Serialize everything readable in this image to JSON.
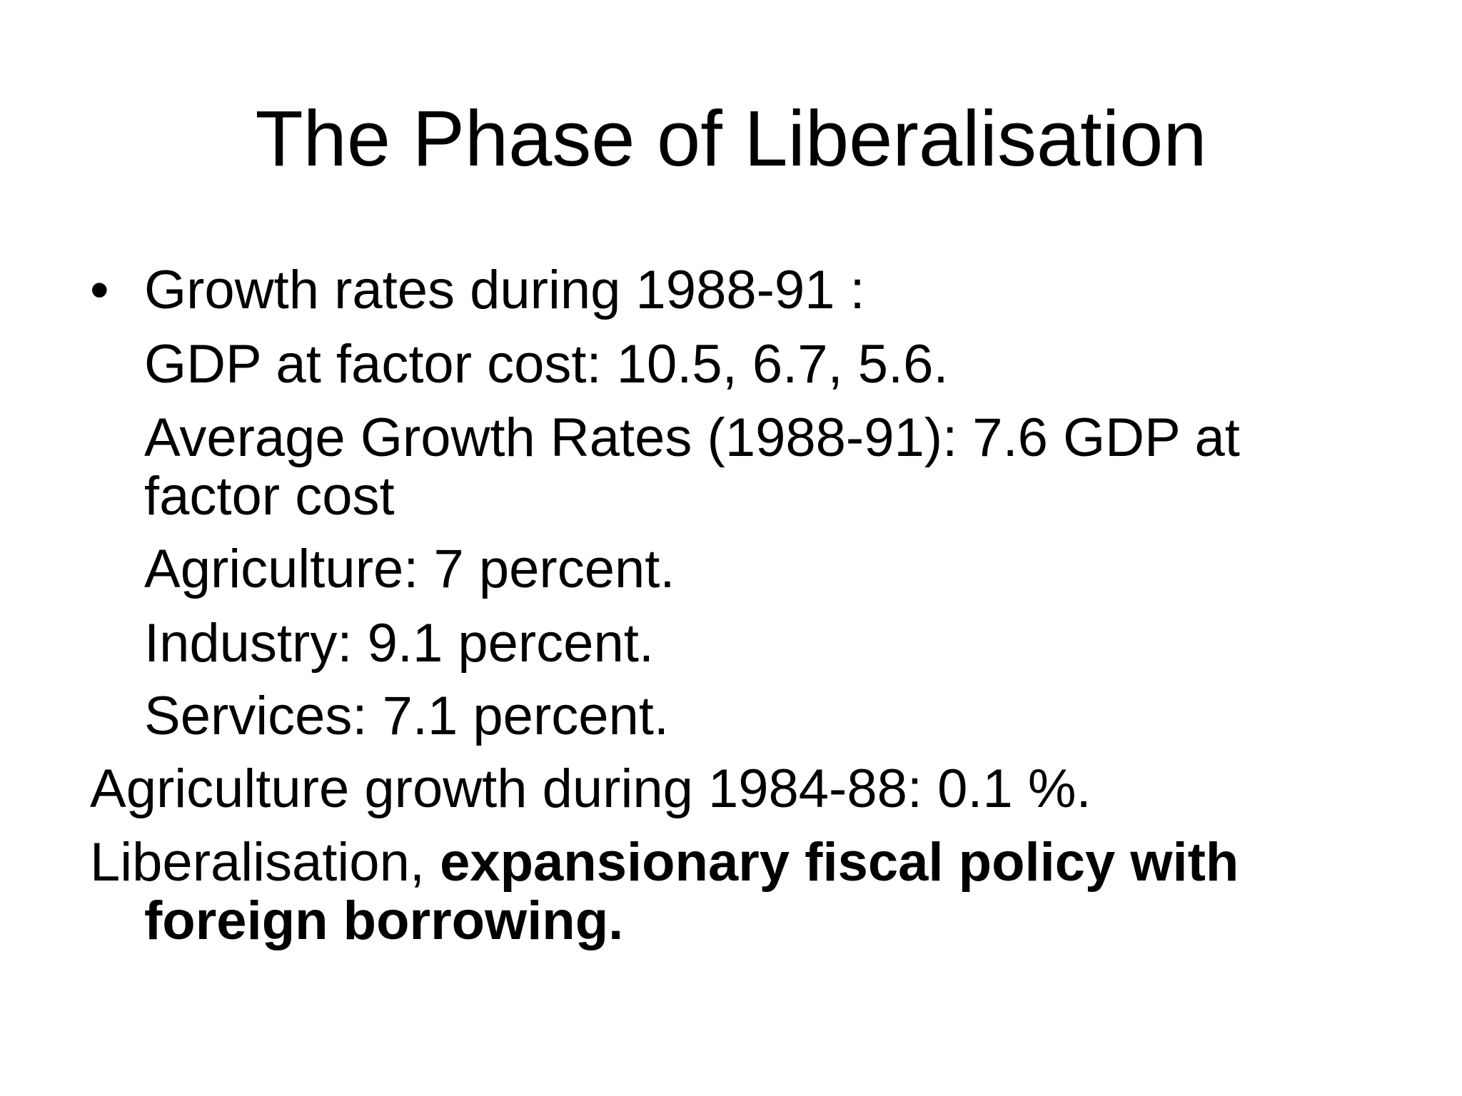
{
  "slide": {
    "title": "The Phase of Liberalisation",
    "bullet_symbol": "•",
    "bullet_heading": "Growth rates during 1988-91 :",
    "sub_lines": [
      "GDP at factor cost: 10.5, 6.7, 5.6.",
      "Average Growth Rates (1988-91): 7.6 GDP at",
      "factor cost",
      "Agriculture: 7 percent.",
      "Industry: 9.1 percent.",
      "Services: 7.1 percent."
    ],
    "agri_line": "Agriculture growth during 1984-88: 0.1 %.",
    "liberal_plain": "Liberalisation, ",
    "liberal_bold": "expansionary fiscal policy with",
    "liberal_bold_cont": "foreign borrowing."
  }
}
